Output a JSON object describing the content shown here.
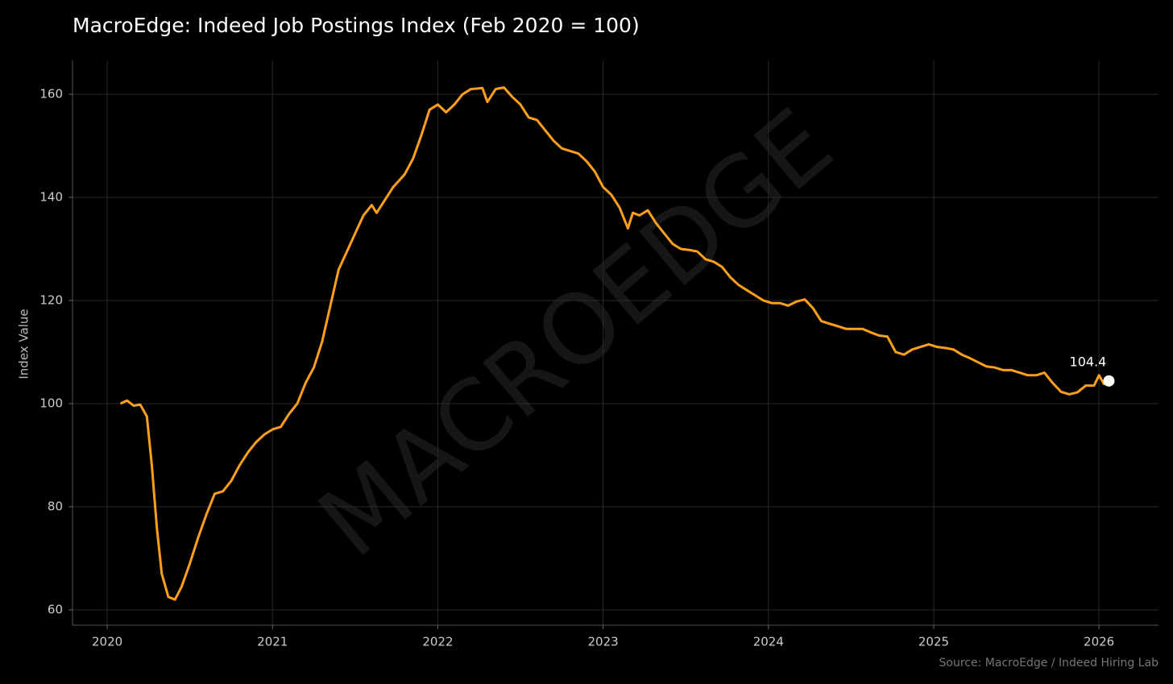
{
  "chart_data": {
    "type": "line",
    "title": "MacroEdge: Indeed Job Postings Index (Feb 2020 = 100)",
    "y_label": "Index Value",
    "source": "Source: MacroEdge / Indeed Hiring Lab",
    "watermark": "MACROEDGE",
    "color": "#ff9f1a",
    "grid": true,
    "xlim": [
      2019.79,
      2026.36
    ],
    "xticks": [
      2020,
      2021,
      2022,
      2023,
      2024,
      2025,
      2026
    ],
    "ylim": [
      57.03,
      166.56
    ],
    "yticks": [
      60,
      80,
      100,
      120,
      140,
      160
    ],
    "x": [
      2020.08,
      2020.12,
      2020.16,
      2020.2,
      2020.24,
      2020.27,
      2020.3,
      2020.33,
      2020.37,
      2020.41,
      2020.45,
      2020.5,
      2020.55,
      2020.6,
      2020.65,
      2020.7,
      2020.75,
      2020.8,
      2020.85,
      2020.9,
      2020.95,
      2021.0,
      2021.05,
      2021.1,
      2021.15,
      2021.2,
      2021.25,
      2021.3,
      2021.35,
      2021.4,
      2021.45,
      2021.5,
      2021.55,
      2021.6,
      2021.63,
      2021.68,
      2021.73,
      2021.8,
      2021.85,
      2021.9,
      2021.95,
      2022.0,
      2022.05,
      2022.1,
      2022.15,
      2022.2,
      2022.27,
      2022.3,
      2022.35,
      2022.4,
      2022.45,
      2022.5,
      2022.55,
      2022.6,
      2022.65,
      2022.7,
      2022.75,
      2022.8,
      2022.85,
      2022.9,
      2022.95,
      2023.0,
      2023.05,
      2023.1,
      2023.15,
      2023.18,
      2023.22,
      2023.27,
      2023.32,
      2023.37,
      2023.42,
      2023.47,
      2023.52,
      2023.57,
      2023.62,
      2023.67,
      2023.72,
      2023.77,
      2023.82,
      2023.87,
      2023.92,
      2023.97,
      2024.02,
      2024.07,
      2024.12,
      2024.17,
      2024.22,
      2024.27,
      2024.32,
      2024.37,
      2024.42,
      2024.47,
      2024.52,
      2024.57,
      2024.62,
      2024.67,
      2024.72,
      2024.77,
      2024.82,
      2024.87,
      2024.92,
      2024.97,
      2025.02,
      2025.07,
      2025.12,
      2025.17,
      2025.22,
      2025.27,
      2025.32,
      2025.37,
      2025.42,
      2025.47,
      2025.52,
      2025.57,
      2025.62,
      2025.67,
      2025.72,
      2025.77,
      2025.82,
      2025.87,
      2025.92,
      2025.97,
      2026.0,
      2026.03,
      2026.06
    ],
    "values": [
      100,
      100.6,
      99.6,
      99.8,
      97.5,
      88,
      76,
      67,
      62.5,
      62,
      64.5,
      69,
      74,
      78.5,
      82.5,
      83,
      85,
      88,
      90.5,
      92.5,
      94,
      95,
      95.5,
      98,
      100,
      104,
      107,
      112,
      119,
      126,
      129.5,
      133,
      136.5,
      138.5,
      137,
      139.5,
      142,
      144.5,
      147.5,
      152,
      157,
      158,
      156.5,
      158,
      160,
      161,
      161.2,
      158.5,
      161,
      161.3,
      159.5,
      158,
      155.5,
      155,
      153,
      151,
      149.5,
      149,
      148.5,
      147,
      145,
      142,
      140.5,
      138,
      134,
      137,
      136.5,
      137.5,
      135,
      133,
      131,
      130,
      129.8,
      129.5,
      128,
      127.5,
      126.5,
      124.5,
      123,
      122,
      121,
      120,
      119.5,
      119.5,
      119,
      119.8,
      120.2,
      118.5,
      116,
      115.5,
      115,
      114.5,
      114.5,
      114.5,
      113.8,
      113.2,
      113,
      110,
      109.5,
      110.5,
      111,
      111.5,
      111,
      110.8,
      110.5,
      109.5,
      108.8,
      108,
      107.2,
      107,
      106.5,
      106.5,
      106,
      105.5,
      105.5,
      106,
      104,
      102.3,
      101.8,
      102.2,
      103.5,
      103.5,
      105.5,
      103.8,
      104.4
    ],
    "last_point": {
      "x": 2026.06,
      "y": 104.4
    }
  }
}
